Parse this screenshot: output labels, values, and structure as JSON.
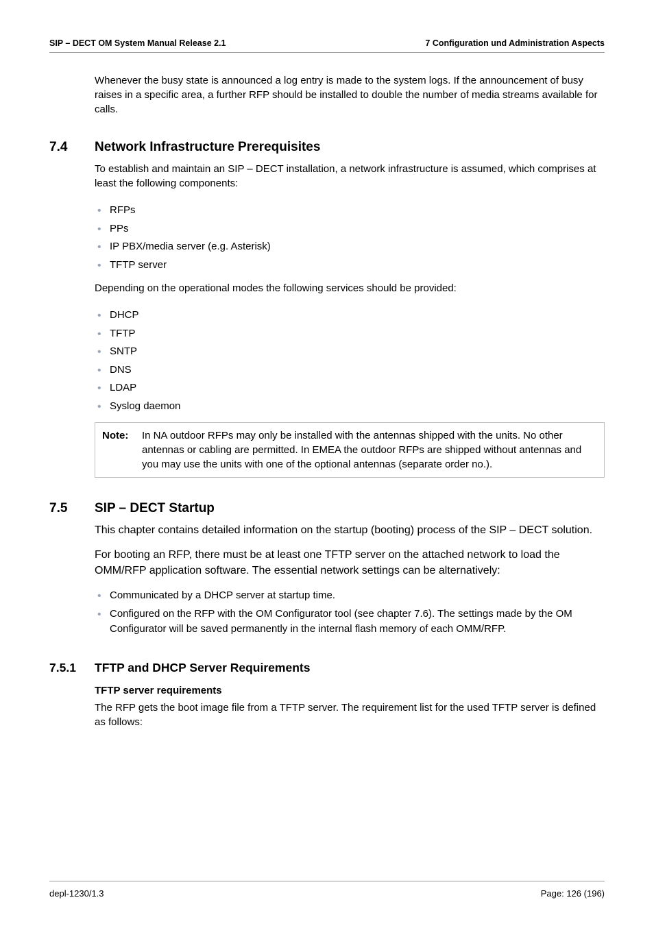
{
  "header": {
    "left": "SIP – DECT OM System Manual Release 2.1",
    "right": "7 Configuration und Administration Aspects"
  },
  "intro_para": "Whenever the busy state is announced a log entry is made to the system logs. If the announcement of busy raises in a specific area, a further RFP should be installed to double the number of media streams available for calls.",
  "sec74": {
    "num": "7.4",
    "title": "Network Infrastructure Prerequisites",
    "p1": "To establish and maintain an SIP – DECT installation, a network infrastructure is assumed, which comprises at least the following components:",
    "list1": [
      "RFPs",
      "PPs",
      "IP PBX/media server (e.g. Asterisk)",
      "TFTP server"
    ],
    "p2": "Depending on the operational modes the following services should be provided:",
    "list2": [
      "DHCP",
      "TFTP",
      "SNTP",
      "DNS",
      "LDAP",
      "Syslog daemon"
    ],
    "note_label": "Note:",
    "note_text": "In NA outdoor RFPs may only be installed with the antennas shipped with the units. No other antennas or cabling are permitted. In EMEA the outdoor RFPs are shipped without antennas and you may use the units with one of the optional antennas (separate order no.)."
  },
  "sec75": {
    "num": "7.5",
    "title": "SIP – DECT Startup",
    "p1": "This chapter contains detailed information on the startup (booting) process of the SIP – DECT solution.",
    "p2": "For booting an RFP, there must be at least one TFTP server on the attached network to load the OMM/RFP application software. The essential network settings can be alternatively:",
    "list": [
      "Communicated by a DHCP server at startup time.",
      "Configured on the RFP with the OM Configurator tool (see chapter 7.6). The settings made by the OM Configurator will be saved permanently in the internal flash memory of each OMM/RFP."
    ]
  },
  "sec751": {
    "num": "7.5.1",
    "title": "TFTP and DHCP Server Requirements",
    "subhead": "TFTP server requirements",
    "p1": "The RFP gets the boot image file from a TFTP server. The requirement list for the used TFTP server is defined as follows:"
  },
  "footer": {
    "left": "depl-1230/1.3",
    "right": "Page: 126 (196)"
  }
}
